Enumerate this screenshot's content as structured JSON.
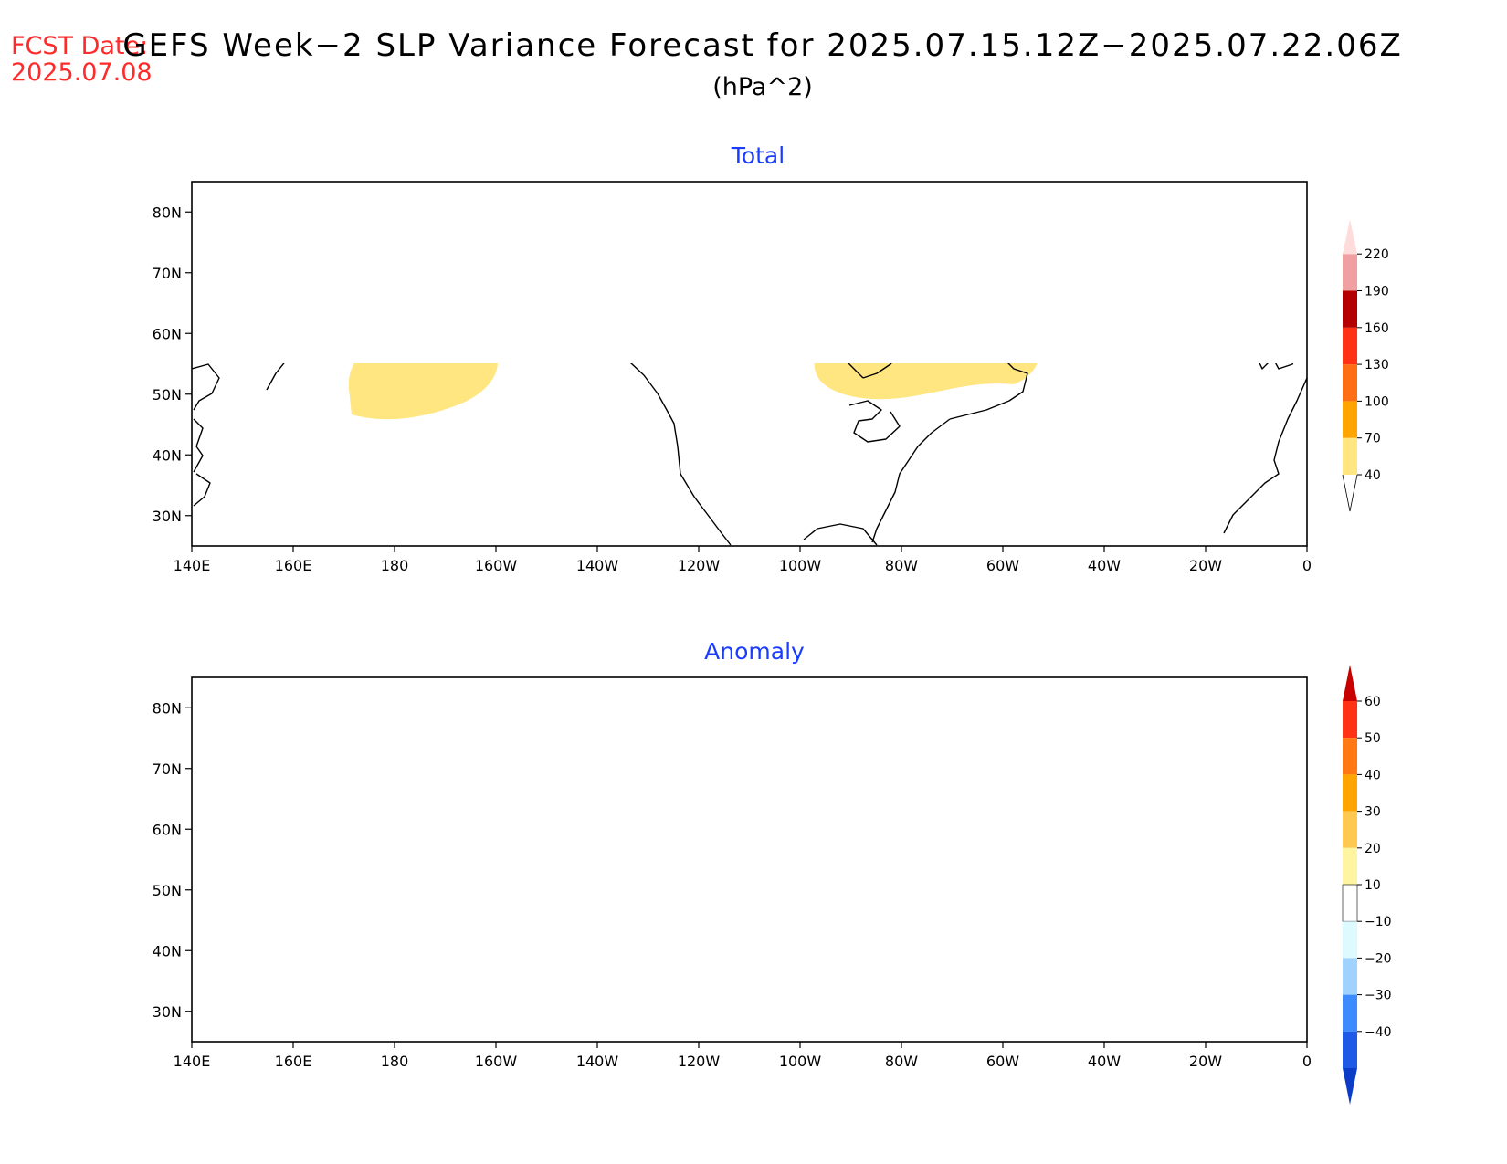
{
  "header": {
    "fcst_date": "FCST Date:\n2025.07.08",
    "title": "GEFS Week−2 SLP Variance Forecast for 2025.07.15.12Z−2025.07.22.06Z",
    "units": "(hPa^2)"
  },
  "axes": {
    "lon_labels": [
      "140E",
      "160E",
      "180",
      "160W",
      "140W",
      "120W",
      "100W",
      "80W",
      "60W",
      "40W",
      "20W",
      "0"
    ],
    "lat_labels": [
      "80N",
      "70N",
      "60N",
      "50N",
      "40N",
      "30N"
    ],
    "lon_range": [
      140,
      360
    ],
    "lat_range": [
      25,
      85
    ]
  },
  "panels": [
    {
      "title": "Total",
      "colorbar": {
        "labels": [
          "40",
          "70",
          "100",
          "130",
          "160",
          "190",
          "220"
        ],
        "colors": [
          "#ffe680",
          "#ffa500",
          "#ff6e14",
          "#ff3214",
          "#b40000",
          "#f0a0a0",
          "#ffdcdc"
        ]
      }
    },
    {
      "title": "Anomaly",
      "colorbar": {
        "labels": [
          "60",
          "50",
          "40",
          "30",
          "20",
          "10",
          "−10",
          "−20",
          "−30",
          "−40"
        ],
        "colors": [
          "#c80000",
          "#ff3214",
          "#ff7814",
          "#ffa500",
          "#ffc850",
          "#fff5a0",
          "#ffffff",
          "#dcfaff",
          "#a0d2ff",
          "#3c8cff",
          "#1e5ae6",
          "#0a3cc8"
        ]
      }
    }
  ],
  "shading": {
    "total_color": "#ffe680",
    "anom_pos_color": "#fff5aa",
    "anom_neg_color": "#dcfaff"
  }
}
